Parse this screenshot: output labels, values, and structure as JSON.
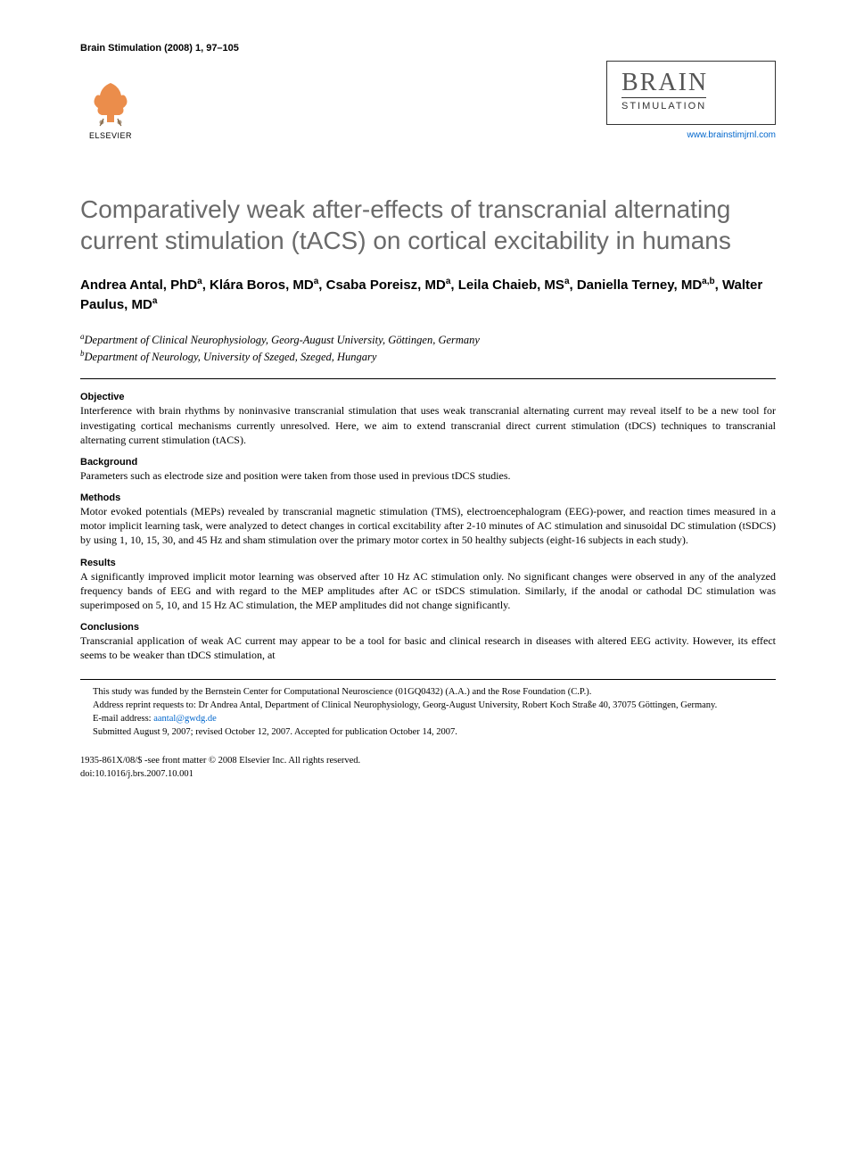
{
  "header": {
    "citation": "Brain Stimulation (2008) 1, 97–105",
    "elsevier_label": "ELSEVIER",
    "journal_brain": "BRAIN",
    "journal_stim": "STIMULATION",
    "journal_url": "www.brainstimjrnl.com"
  },
  "title": "Comparatively weak after-effects of transcranial alternating current stimulation (tACS) on cortical excitability in humans",
  "authors_html": "Andrea Antal, PhD<sup>a</sup>, Klára Boros, MD<sup>a</sup>, Csaba Poreisz, MD<sup>a</sup>, Leila Chaieb, MS<sup>a</sup>, Daniella Terney, MD<sup>a,b</sup>, Walter Paulus, MD<sup>a</sup>",
  "affiliations": [
    {
      "sup": "a",
      "text": "Department of Clinical Neurophysiology, Georg-August University, Göttingen, Germany"
    },
    {
      "sup": "b",
      "text": "Department of Neurology, University of Szeged, Szeged, Hungary"
    }
  ],
  "abstract": [
    {
      "heading": "Objective",
      "body": "Interference with brain rhythms by noninvasive transcranial stimulation that uses weak transcranial alternating current may reveal itself to be a new tool for investigating cortical mechanisms currently unresolved. Here, we aim to extend transcranial direct current stimulation (tDCS) techniques to transcranial alternating current stimulation (tACS)."
    },
    {
      "heading": "Background",
      "body": "Parameters such as electrode size and position were taken from those used in previous tDCS studies."
    },
    {
      "heading": "Methods",
      "body": "Motor evoked potentials (MEPs) revealed by transcranial magnetic stimulation (TMS), electroencephalogram (EEG)-power, and reaction times measured in a motor implicit learning task, were analyzed to detect changes in cortical excitability after 2-10 minutes of AC stimulation and sinusoidal DC stimulation (tSDCS) by using 1, 10, 15, 30, and 45 Hz and sham stimulation over the primary motor cortex in 50 healthy subjects (eight-16 subjects in each study)."
    },
    {
      "heading": "Results",
      "body": "A significantly improved implicit motor learning was observed after 10 Hz AC stimulation only. No significant changes were observed in any of the analyzed frequency bands of EEG and with regard to the MEP amplitudes after AC or tSDCS stimulation. Similarly, if the anodal or cathodal DC stimulation was superimposed on 5, 10, and 15 Hz AC stimulation, the MEP amplitudes did not change significantly."
    },
    {
      "heading": "Conclusions",
      "body": "Transcranial application of weak AC current may appear to be a tool for basic and clinical research in diseases with altered EEG activity. However, its effect seems to be weaker than tDCS stimulation, at"
    }
  ],
  "footnotes": {
    "funding": "This study was funded by the Bernstein Center for Computational Neuroscience (01GQ0432) (A.A.) and the Rose Foundation (C.P.).",
    "reprint": "Address reprint requests to: Dr Andrea Antal, Department of Clinical Neurophysiology, Georg-August University, Robert Koch Straße 40, 37075 Göttingen, Germany.",
    "email_label": "E-mail address: ",
    "email": "aantal@gwdg.de",
    "submitted": "Submitted August 9, 2007; revised October 12, 2007. Accepted for publication October 14, 2007."
  },
  "copyright": {
    "line1": "1935-861X/08/$ -see front matter © 2008 Elsevier Inc. All rights reserved.",
    "line2": "doi:10.1016/j.brs.2007.10.001"
  },
  "colors": {
    "title_color": "#6a6a6a",
    "link_color": "#0066cc",
    "text_color": "#000000",
    "background": "#ffffff",
    "elsevier_orange": "#e8792c"
  }
}
